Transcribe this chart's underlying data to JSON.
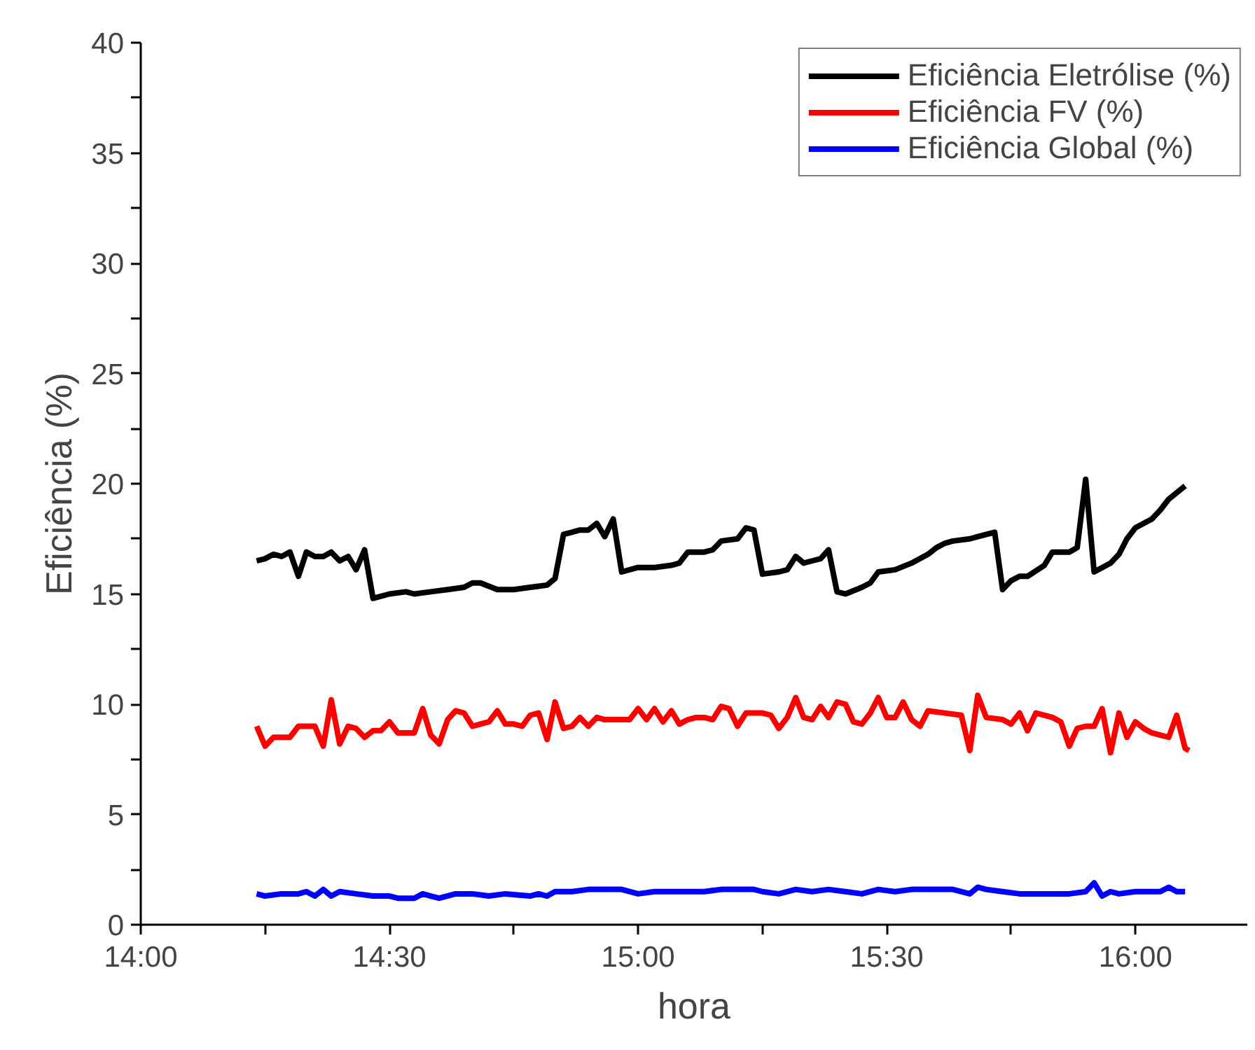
{
  "chart_data": {
    "type": "line",
    "xlabel": "hora",
    "ylabel": "Eficiência (%)",
    "xlim": [
      14,
      16.225
    ],
    "ylim": [
      0,
      40
    ],
    "xticks": [
      {
        "value": 14,
        "label": "14:00"
      },
      {
        "value": 14.25,
        "label": null
      },
      {
        "value": 14.5,
        "label": "14:30"
      },
      {
        "value": 14.75,
        "label": null
      },
      {
        "value": 15,
        "label": "15:00"
      },
      {
        "value": 15.25,
        "label": null
      },
      {
        "value": 15.5,
        "label": "15:30"
      },
      {
        "value": 15.75,
        "label": null
      },
      {
        "value": 16,
        "label": "16:00"
      }
    ],
    "yticks": [
      0,
      {
        "value": 2.5,
        "label": null
      },
      5,
      {
        "value": 7.5,
        "label": null
      },
      10,
      {
        "value": 12.5,
        "label": null
      },
      15,
      {
        "value": 17.5,
        "label": null
      },
      20,
      {
        "value": 22.5,
        "label": null
      },
      25,
      {
        "value": 27.5,
        "label": null
      },
      30,
      {
        "value": 32.5,
        "label": null
      },
      35,
      {
        "value": 37.5,
        "label": null
      },
      40
    ],
    "grid": false,
    "legend": "top right",
    "marker": "none",
    "line_style": "solid",
    "series": [
      {
        "name": "Eficiência Eletrólise (%)",
        "color": "#000000",
        "x": [
          14.233,
          14.25,
          14.267,
          14.283,
          14.3,
          14.317,
          14.333,
          14.35,
          14.367,
          14.383,
          14.4,
          14.417,
          14.433,
          14.45,
          14.467,
          14.5,
          14.533,
          14.55,
          14.583,
          14.617,
          14.65,
          14.667,
          14.683,
          14.717,
          14.75,
          14.783,
          14.817,
          14.833,
          14.85,
          14.867,
          14.883,
          14.9,
          14.917,
          14.933,
          14.95,
          14.967,
          15.0,
          15.033,
          15.067,
          15.083,
          15.1,
          15.133,
          15.15,
          15.167,
          15.2,
          15.217,
          15.233,
          15.25,
          15.283,
          15.3,
          15.317,
          15.333,
          15.35,
          15.367,
          15.383,
          15.4,
          15.417,
          15.45,
          15.467,
          15.483,
          15.517,
          15.55,
          15.583,
          15.6,
          15.617,
          15.633,
          15.667,
          15.683,
          15.717,
          15.733,
          15.75,
          15.767,
          15.783,
          15.817,
          15.833,
          15.867,
          15.883,
          15.9,
          15.917,
          15.95,
          15.967,
          15.983,
          16.0,
          16.033,
          16.05,
          16.067,
          16.1
        ],
        "values": [
          16.5,
          16.6,
          16.8,
          16.7,
          16.9,
          15.8,
          16.9,
          16.7,
          16.7,
          16.9,
          16.5,
          16.7,
          16.1,
          17.0,
          14.8,
          15.0,
          15.1,
          15.0,
          15.1,
          15.2,
          15.3,
          15.5,
          15.5,
          15.2,
          15.2,
          15.3,
          15.4,
          15.7,
          17.7,
          17.8,
          17.9,
          17.9,
          18.2,
          17.6,
          18.4,
          16.0,
          16.2,
          16.2,
          16.3,
          16.4,
          16.9,
          16.9,
          17.0,
          17.4,
          17.5,
          18.0,
          17.9,
          15.9,
          16.0,
          16.1,
          16.7,
          16.4,
          16.5,
          16.6,
          17.0,
          15.1,
          15.0,
          15.3,
          15.5,
          16.0,
          16.1,
          16.4,
          16.8,
          17.1,
          17.3,
          17.4,
          17.5,
          17.6,
          17.8,
          15.2,
          15.6,
          15.8,
          15.8,
          16.3,
          16.9,
          16.9,
          17.1,
          20.2,
          16.0,
          16.4,
          16.8,
          17.5,
          18.0,
          18.4,
          18.8,
          19.3,
          19.9
        ]
      },
      {
        "name": "Eficiência FV (%)",
        "color": "#ff0000",
        "x": [
          14.233,
          14.25,
          14.267,
          14.283,
          14.3,
          14.317,
          14.333,
          14.35,
          14.367,
          14.383,
          14.4,
          14.417,
          14.433,
          14.45,
          14.467,
          14.483,
          14.5,
          14.517,
          14.533,
          14.55,
          14.567,
          14.583,
          14.6,
          14.617,
          14.633,
          14.65,
          14.667,
          14.683,
          14.7,
          14.717,
          14.733,
          14.75,
          14.767,
          14.783,
          14.8,
          14.817,
          14.833,
          14.85,
          14.867,
          14.883,
          14.9,
          14.917,
          14.933,
          14.967,
          14.983,
          15.0,
          15.017,
          15.033,
          15.05,
          15.067,
          15.083,
          15.1,
          15.117,
          15.133,
          15.15,
          15.167,
          15.183,
          15.2,
          15.217,
          15.25,
          15.267,
          15.283,
          15.3,
          15.317,
          15.333,
          15.35,
          15.367,
          15.383,
          15.4,
          15.417,
          15.433,
          15.45,
          15.467,
          15.483,
          15.5,
          15.517,
          15.533,
          15.55,
          15.567,
          15.583,
          15.617,
          15.65,
          15.667,
          15.683,
          15.7,
          15.733,
          15.75,
          15.767,
          15.783,
          15.8,
          15.833,
          15.85,
          15.867,
          15.883,
          15.9,
          15.917,
          15.933,
          15.95,
          15.967,
          15.983,
          16.0,
          16.017,
          16.033,
          16.05,
          16.067,
          16.083,
          16.1,
          16.108
        ],
        "values": [
          9.0,
          8.1,
          8.5,
          8.5,
          8.5,
          9.0,
          9.0,
          9.0,
          8.1,
          10.2,
          8.2,
          9.0,
          8.9,
          8.5,
          8.8,
          8.8,
          9.2,
          8.7,
          8.7,
          8.7,
          9.8,
          8.6,
          8.2,
          9.3,
          9.7,
          9.6,
          9.0,
          9.1,
          9.2,
          9.7,
          9.1,
          9.1,
          9.0,
          9.5,
          9.6,
          8.4,
          10.1,
          8.9,
          9.0,
          9.4,
          9.0,
          9.4,
          9.3,
          9.3,
          9.3,
          9.8,
          9.3,
          9.8,
          9.2,
          9.7,
          9.1,
          9.3,
          9.4,
          9.4,
          9.3,
          9.9,
          9.8,
          9.0,
          9.6,
          9.6,
          9.5,
          8.9,
          9.4,
          10.3,
          9.4,
          9.3,
          9.9,
          9.4,
          10.1,
          10.0,
          9.2,
          9.1,
          9.6,
          10.3,
          9.4,
          9.4,
          10.1,
          9.3,
          9.0,
          9.7,
          9.6,
          9.5,
          7.9,
          10.4,
          9.4,
          9.3,
          9.1,
          9.6,
          8.8,
          9.6,
          9.4,
          9.2,
          8.1,
          8.9,
          9.0,
          9.0,
          9.8,
          7.8,
          9.6,
          8.5,
          9.2,
          8.9,
          8.7,
          8.6,
          8.5,
          9.5,
          8.0,
          7.9
        ]
      },
      {
        "name": "Eficiência Global (%)",
        "color": "#0000ff",
        "x": [
          14.233,
          14.25,
          14.283,
          14.317,
          14.333,
          14.35,
          14.367,
          14.383,
          14.4,
          14.433,
          14.467,
          14.5,
          14.517,
          14.55,
          14.567,
          14.583,
          14.6,
          14.633,
          14.667,
          14.7,
          14.733,
          14.783,
          14.8,
          14.817,
          14.833,
          14.867,
          14.9,
          14.933,
          14.967,
          15.0,
          15.033,
          15.067,
          15.1,
          15.133,
          15.167,
          15.2,
          15.233,
          15.25,
          15.283,
          15.317,
          15.35,
          15.383,
          15.417,
          15.45,
          15.483,
          15.517,
          15.55,
          15.583,
          15.633,
          15.667,
          15.683,
          15.7,
          15.733,
          15.767,
          15.8,
          15.833,
          15.867,
          15.9,
          15.917,
          15.933,
          15.95,
          15.967,
          16.0,
          16.05,
          16.067,
          16.083,
          16.1
        ],
        "values": [
          1.4,
          1.3,
          1.4,
          1.4,
          1.5,
          1.3,
          1.6,
          1.3,
          1.5,
          1.4,
          1.3,
          1.3,
          1.2,
          1.2,
          1.4,
          1.3,
          1.2,
          1.4,
          1.4,
          1.3,
          1.4,
          1.3,
          1.4,
          1.3,
          1.5,
          1.5,
          1.6,
          1.6,
          1.6,
          1.4,
          1.5,
          1.5,
          1.5,
          1.5,
          1.6,
          1.6,
          1.6,
          1.5,
          1.4,
          1.6,
          1.5,
          1.6,
          1.5,
          1.4,
          1.6,
          1.5,
          1.6,
          1.6,
          1.6,
          1.4,
          1.7,
          1.6,
          1.5,
          1.4,
          1.4,
          1.4,
          1.4,
          1.5,
          1.9,
          1.3,
          1.5,
          1.4,
          1.5,
          1.5,
          1.7,
          1.5,
          1.5
        ]
      }
    ]
  }
}
